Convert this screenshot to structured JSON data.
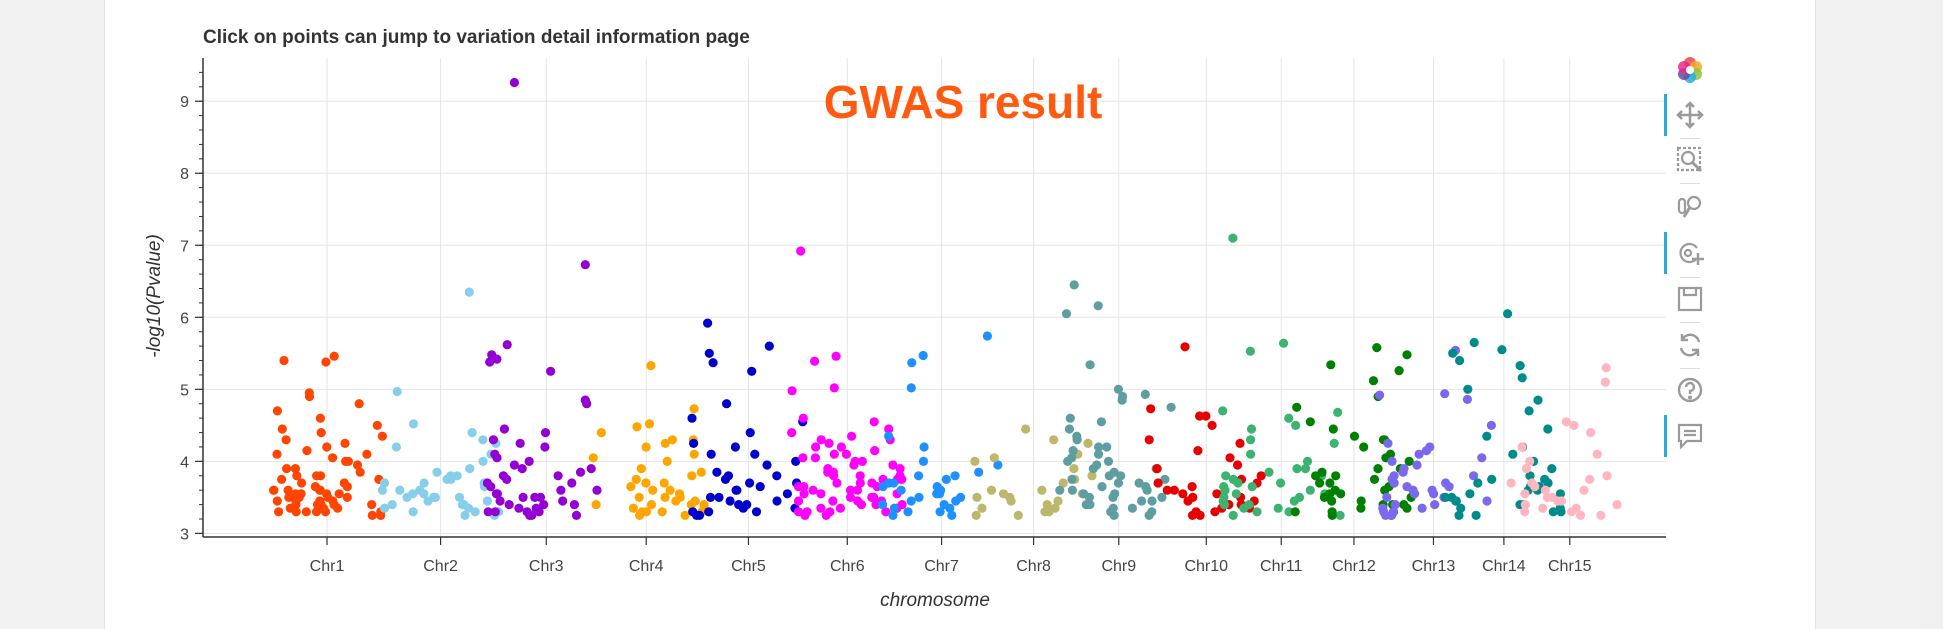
{
  "plot": {
    "title": "Click on points can jump to variation detail information page",
    "annotation": "GWAS result",
    "annotation_color": "#ff5a0f"
  },
  "toolbar": {
    "items": [
      {
        "icon": "bokeh-logo-icon",
        "active": false
      },
      {
        "icon": "pan-icon",
        "active": true
      },
      {
        "icon": "box-zoom-icon",
        "active": false
      },
      {
        "icon": "wheel-zoom-icon",
        "active": false
      },
      {
        "icon": "tap-icon",
        "active": true
      },
      {
        "icon": "save-icon",
        "active": false
      },
      {
        "icon": "reset-icon",
        "active": false
      },
      {
        "icon": "help-icon",
        "active": false
      },
      {
        "icon": "hover-icon",
        "active": true
      }
    ]
  },
  "chart_data": {
    "type": "scatter",
    "title": "Click on points can jump to variation detail information page",
    "xlabel": "chromosome",
    "ylabel": "-log10(Pvalue)",
    "ylim": [
      2.95,
      9.6
    ],
    "yticks": [
      3,
      4,
      5,
      6,
      7,
      8,
      9
    ],
    "grid": true,
    "series": [
      {
        "name": "Chr1",
        "color": "#ff4500",
        "center": 1.0,
        "values": [
          5.38,
          5.46,
          3.75,
          3.8,
          3.6,
          3.5,
          3.45,
          3.4,
          3.35,
          3.3,
          3.7,
          3.85,
          4.0,
          4.1,
          4.2,
          3.55,
          3.65,
          3.9,
          3.4,
          3.3,
          3.5,
          3.6,
          3.75,
          4.35,
          4.45,
          4.6,
          3.3,
          3.35,
          3.4,
          3.45,
          3.5,
          3.55,
          3.6,
          3.7,
          3.8,
          3.9,
          4.05,
          4.15,
          4.3,
          4.8,
          4.9,
          4.95,
          4.7,
          4.5,
          3.3,
          3.25,
          3.35,
          3.45,
          3.55,
          3.65,
          3.95,
          4.25,
          5.4,
          3.5,
          3.4,
          3.3,
          3.6,
          3.8,
          4.0,
          3.7,
          3.25,
          3.3,
          3.45,
          3.55,
          3.35,
          4.1,
          4.4,
          3.6,
          3.5,
          3.4
        ]
      },
      {
        "name": "Chr2",
        "color": "#87ceeb",
        "center": 2.0,
        "values": [
          6.35,
          4.97,
          4.52,
          4.4,
          4.3,
          4.25,
          4.1,
          4.0,
          3.9,
          3.8,
          3.75,
          3.7,
          3.6,
          3.55,
          3.5,
          3.45,
          3.4,
          3.35,
          3.3,
          3.25,
          3.6,
          3.7,
          3.8,
          3.5,
          3.4,
          3.3,
          3.5,
          3.65,
          3.75,
          3.85,
          4.2,
          3.3,
          3.45,
          3.55,
          3.35,
          3.6,
          3.25,
          3.4,
          3.5,
          3.7
        ]
      },
      {
        "name": "Chr3",
        "color": "#9400d3",
        "center": 2.93,
        "values": [
          9.26,
          6.73,
          5.62,
          5.48,
          5.42,
          5.38,
          5.25,
          4.85,
          4.8,
          4.45,
          4.4,
          4.3,
          4.25,
          4.2,
          4.1,
          4.0,
          3.95,
          3.9,
          3.85,
          3.8,
          3.75,
          3.7,
          3.6,
          3.55,
          3.5,
          3.45,
          3.4,
          3.35,
          3.3,
          3.25,
          3.5,
          3.4,
          3.3,
          3.6,
          3.7,
          3.45,
          3.35,
          3.25,
          3.55,
          3.9,
          4.05,
          3.3,
          3.4,
          3.5,
          3.65,
          3.8,
          3.3,
          3.25
        ]
      },
      {
        "name": "Chr4",
        "color": "#ffa500",
        "center": 3.81,
        "values": [
          5.33,
          4.73,
          4.52,
          4.48,
          4.4,
          4.3,
          4.25,
          4.2,
          4.1,
          4.0,
          3.9,
          3.85,
          3.8,
          3.75,
          3.7,
          3.6,
          3.5,
          3.45,
          3.4,
          3.35,
          3.3,
          3.25,
          3.5,
          3.4,
          3.3,
          3.6,
          3.7,
          3.35,
          3.45,
          3.55,
          3.3,
          3.25,
          3.4,
          4.3,
          4.05,
          3.65,
          3.3,
          3.4,
          3.5
        ]
      },
      {
        "name": "Chr5",
        "color": "#0000cd",
        "center": 4.71,
        "values": [
          5.92,
          5.6,
          5.5,
          5.37,
          5.25,
          4.8,
          4.6,
          4.55,
          4.4,
          4.25,
          4.2,
          4.1,
          3.95,
          3.85,
          3.8,
          3.75,
          3.7,
          3.65,
          3.6,
          3.55,
          3.5,
          3.45,
          3.4,
          3.35,
          3.3,
          3.25,
          3.3,
          3.4,
          3.5,
          3.6,
          3.7,
          3.8,
          3.3,
          3.25,
          3.45,
          3.35,
          4.1,
          4.0
        ]
      },
      {
        "name": "Chr6",
        "color": "#ff00ff",
        "center": 5.58,
        "values": [
          6.92,
          5.46,
          5.39,
          5.02,
          4.98,
          4.6,
          4.55,
          4.45,
          4.4,
          4.35,
          4.3,
          4.25,
          4.2,
          4.15,
          4.1,
          4.05,
          4.0,
          3.95,
          3.9,
          3.85,
          3.8,
          3.75,
          3.7,
          3.65,
          3.6,
          3.55,
          3.5,
          3.45,
          3.4,
          3.35,
          3.3,
          3.25,
          3.3,
          3.35,
          3.4,
          3.45,
          3.5,
          3.55,
          3.6,
          3.65,
          3.7,
          3.75,
          3.8,
          3.85,
          3.9,
          3.95,
          4.0,
          4.05,
          4.1,
          3.3,
          3.4,
          3.5,
          3.6,
          3.7,
          3.8,
          3.3,
          3.25,
          3.45,
          3.55,
          3.65,
          3.75,
          4.2,
          4.3,
          3.35,
          3.45
        ]
      },
      {
        "name": "Chr7",
        "color": "#1e90ff",
        "center": 6.41,
        "values": [
          5.74,
          5.47,
          5.37,
          5.02,
          4.35,
          4.2,
          4.0,
          3.95,
          3.85,
          3.8,
          3.75,
          3.7,
          3.65,
          3.6,
          3.55,
          3.5,
          3.45,
          3.4,
          3.35,
          3.3,
          3.25,
          3.5,
          3.6,
          3.7,
          3.4,
          3.3,
          3.55,
          3.65,
          3.45,
          3.35,
          3.25,
          3.8
        ]
      },
      {
        "name": "Chr8",
        "color": "#bdb76b",
        "center": 7.22,
        "values": [
          4.45,
          4.3,
          4.25,
          4.1,
          4.05,
          4.0,
          3.9,
          3.8,
          3.75,
          3.7,
          3.6,
          3.55,
          3.5,
          3.45,
          3.4,
          3.35,
          3.3,
          3.25,
          3.5,
          3.4,
          3.3,
          3.6,
          3.35,
          3.45,
          3.25,
          3.55
        ]
      },
      {
        "name": "Chr9",
        "color": "#5f9ea0",
        "center": 7.97,
        "values": [
          6.45,
          6.16,
          6.05,
          5.34,
          5.0,
          4.9,
          4.85,
          4.75,
          4.6,
          4.55,
          4.45,
          4.35,
          4.3,
          4.2,
          4.15,
          4.1,
          4.05,
          4.0,
          3.95,
          3.9,
          3.85,
          3.8,
          3.75,
          3.7,
          3.65,
          3.6,
          3.55,
          3.5,
          3.45,
          3.4,
          3.35,
          3.3,
          3.25,
          3.5,
          3.6,
          3.7,
          3.8,
          3.4,
          3.3,
          3.45,
          3.55,
          3.65,
          3.75,
          3.35,
          3.25,
          4.0,
          4.2,
          3.9,
          3.6,
          3.5,
          4.93
        ]
      },
      {
        "name": "Chr10",
        "color": "#e60000",
        "center": 8.74,
        "values": [
          5.59,
          4.73,
          4.63,
          4.63,
          4.5,
          4.3,
          4.25,
          4.15,
          4.05,
          3.95,
          3.9,
          3.8,
          3.75,
          3.7,
          3.6,
          3.55,
          3.5,
          3.45,
          3.4,
          3.35,
          3.3,
          3.25,
          3.5,
          3.6,
          3.4,
          3.3,
          3.55,
          3.45,
          3.35,
          3.7,
          3.25,
          3.65
        ]
      },
      {
        "name": "Chr11",
        "color": "#3cb371",
        "center": 9.4,
        "values": [
          7.1,
          5.64,
          5.53,
          4.7,
          4.68,
          4.5,
          4.45,
          4.3,
          4.25,
          4.1,
          4.0,
          3.9,
          3.85,
          3.8,
          3.75,
          3.7,
          3.65,
          3.6,
          3.55,
          3.5,
          3.45,
          3.4,
          3.35,
          3.3,
          3.25,
          3.5,
          3.6,
          3.4,
          3.3,
          3.45,
          3.55,
          3.65,
          3.35,
          3.25,
          3.7,
          3.8,
          4.6,
          3.9
        ]
      },
      {
        "name": "Chr12",
        "color": "#008000",
        "center": 10.04,
        "values": [
          5.58,
          5.48,
          5.34,
          5.26,
          5.12,
          4.9,
          4.75,
          4.55,
          4.45,
          4.35,
          4.3,
          4.2,
          4.05,
          4.0,
          3.9,
          3.85,
          3.8,
          3.75,
          3.7,
          3.65,
          3.6,
          3.55,
          3.5,
          3.45,
          3.4,
          3.35,
          3.3,
          3.25,
          3.3,
          3.4,
          3.5,
          3.6,
          3.7,
          3.8,
          3.9,
          3.35,
          3.25,
          3.45,
          3.55,
          4.1,
          4.3,
          3.3,
          3.4
        ]
      },
      {
        "name": "Chr13",
        "color": "#7b68ee",
        "center": 10.74,
        "values": [
          5.54,
          4.94,
          4.92,
          4.86,
          4.5,
          4.25,
          4.2,
          4.15,
          4.1,
          4.0,
          3.95,
          3.9,
          3.85,
          3.8,
          3.75,
          3.7,
          3.65,
          3.6,
          3.55,
          3.5,
          3.45,
          3.4,
          3.35,
          3.3,
          3.25,
          3.5,
          3.6,
          3.4,
          3.3,
          3.7,
          3.8,
          3.45,
          3.35,
          3.55,
          3.65,
          3.25,
          4.05
        ]
      },
      {
        "name": "Chr14",
        "color": "#008b8b",
        "center": 11.36,
        "values": [
          6.05,
          5.65,
          5.55,
          5.5,
          5.4,
          5.33,
          5.16,
          5.0,
          4.85,
          4.7,
          4.45,
          4.35,
          4.2,
          4.1,
          4.0,
          3.9,
          3.8,
          3.75,
          3.7,
          3.65,
          3.6,
          3.55,
          3.5,
          3.45,
          3.4,
          3.35,
          3.3,
          3.25,
          3.5,
          3.6,
          3.7,
          3.4,
          3.3,
          3.45,
          3.55,
          3.65,
          3.35,
          3.25,
          3.75
        ]
      },
      {
        "name": "Chr15",
        "color": "#ffb6c1",
        "center": 11.94,
        "values": [
          5.3,
          5.1,
          4.55,
          4.5,
          4.4,
          4.2,
          4.1,
          4.0,
          3.9,
          3.8,
          3.75,
          3.7,
          3.65,
          3.6,
          3.55,
          3.5,
          3.45,
          3.4,
          3.35,
          3.3,
          3.25,
          3.5,
          3.6,
          3.4,
          3.3,
          3.7,
          3.45,
          3.35,
          3.25
        ]
      }
    ]
  }
}
